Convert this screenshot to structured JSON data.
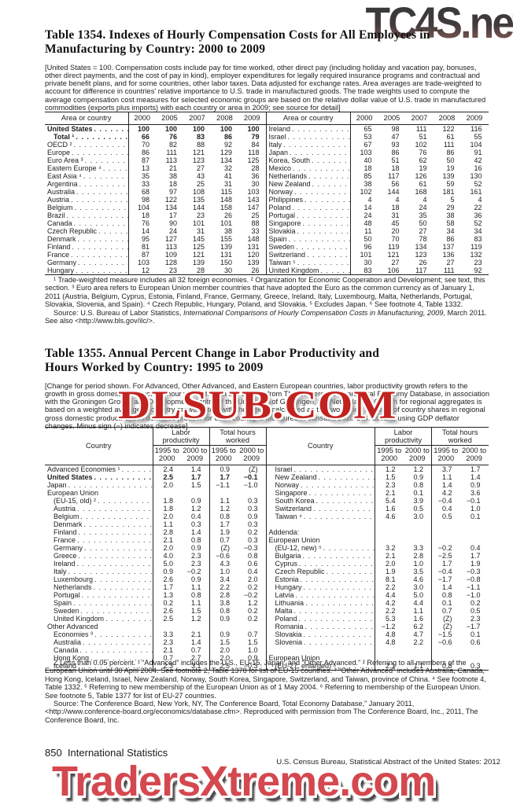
{
  "watermarks": {
    "top": "TC4S.net",
    "middle": "DLSUB.COM",
    "bottom": "TradersXtreme.com",
    "red": "#c2221f",
    "bottom_red": "#d4484f",
    "top_gray": "#2f2f2f"
  },
  "table1354": {
    "title": "Table 1354. Indexes of Hourly Compensation Costs for All Employees in\nManufacturing by Country: 2000 to 2009",
    "note": "[United States = 100. Compensation costs include pay for time worked, other direct pay (including holiday and vacation pay, bonuses, other direct payments, and the cost of pay in kind), employer expenditures for legally required insurance programs and contractual and private benefit plans, and for some countries, other labor taxes. Data adjusted for exchange rates. Area averages are trade-weighted to account for difference in countries' relative importance to U.S. trade in manufactured goods. The trade weights used to compute the average compensation cost measures for selected economic groups are based on the relative dollar value of U.S. trade in manufactured commodities (exports plus imports) with each country or area in 2009; see source for detail]",
    "col_header_country": "Area or country",
    "years": [
      "2000",
      "2005",
      "2007",
      "2008",
      "2009"
    ],
    "left_rows": [
      {
        "label": "United States",
        "bold": true,
        "values": [
          "100",
          "100",
          "100",
          "100",
          "100"
        ]
      },
      {
        "label": "Total ¹",
        "bold": true,
        "indent": 1,
        "values": [
          "66",
          "76",
          "83",
          "86",
          "79"
        ]
      },
      {
        "label": "OECD ²",
        "values": [
          "70",
          "82",
          "88",
          "92",
          "84"
        ]
      },
      {
        "label": "Europe",
        "values": [
          "86",
          "111",
          "121",
          "129",
          "118"
        ]
      },
      {
        "label": "Euro Area ³",
        "values": [
          "87",
          "113",
          "123",
          "134",
          "125"
        ]
      },
      {
        "label": "Eastern Europe ⁴",
        "values": [
          "13",
          "21",
          "27",
          "32",
          "28"
        ]
      },
      {
        "label": "East Asia ⁴",
        "values": [
          "35",
          "38",
          "43",
          "41",
          "36"
        ]
      },
      {
        "label": "Argentina",
        "values": [
          "33",
          "18",
          "25",
          "31",
          "30"
        ]
      },
      {
        "label": "Australia",
        "values": [
          "68",
          "97",
          "108",
          "115",
          "103"
        ]
      },
      {
        "label": "Austria",
        "values": [
          "98",
          "122",
          "135",
          "148",
          "143"
        ]
      },
      {
        "label": "Belgium",
        "values": [
          "104",
          "134",
          "144",
          "158",
          "147"
        ]
      },
      {
        "label": "Brazil",
        "values": [
          "18",
          "17",
          "23",
          "26",
          "25"
        ]
      },
      {
        "label": "Canada",
        "values": [
          "76",
          "90",
          "101",
          "101",
          "88"
        ]
      },
      {
        "label": "Czech Republic",
        "values": [
          "14",
          "24",
          "31",
          "38",
          "33"
        ]
      },
      {
        "label": "Denmark",
        "values": [
          "95",
          "127",
          "145",
          "155",
          "148"
        ]
      },
      {
        "label": "Finland",
        "values": [
          "81",
          "113",
          "125",
          "139",
          "131"
        ]
      },
      {
        "label": "France",
        "values": [
          "87",
          "109",
          "121",
          "131",
          "120"
        ]
      },
      {
        "label": "Germany",
        "values": [
          "103",
          "128",
          "139",
          "150",
          "139"
        ]
      },
      {
        "label": "Hungary",
        "values": [
          "12",
          "23",
          "28",
          "30",
          "26"
        ]
      }
    ],
    "right_rows": [
      {
        "label": "Ireland",
        "values": [
          "65",
          "98",
          "111",
          "122",
          "116"
        ]
      },
      {
        "label": "Israel",
        "values": [
          "53",
          "47",
          "51",
          "61",
          "55"
        ]
      },
      {
        "label": "Italy",
        "values": [
          "67",
          "93",
          "102",
          "111",
          "104"
        ]
      },
      {
        "label": "Japan",
        "values": [
          "103",
          "86",
          "76",
          "86",
          "91"
        ]
      },
      {
        "label": "Korea, South",
        "values": [
          "40",
          "51",
          "62",
          "50",
          "42"
        ]
      },
      {
        "label": "Mexico",
        "values": [
          "18",
          "18",
          "19",
          "19",
          "16"
        ]
      },
      {
        "label": "Netherlands",
        "values": [
          "85",
          "117",
          "126",
          "139",
          "130"
        ]
      },
      {
        "label": "New Zealand",
        "values": [
          "38",
          "56",
          "61",
          "59",
          "52"
        ]
      },
      {
        "label": "Norway",
        "values": [
          "102",
          "144",
          "168",
          "181",
          "161"
        ]
      },
      {
        "label": "Philippines",
        "values": [
          "4",
          "4",
          "4",
          "5",
          "4"
        ]
      },
      {
        "label": "Poland",
        "values": [
          "14",
          "18",
          "24",
          "29",
          "22"
        ]
      },
      {
        "label": "Portugal",
        "values": [
          "24",
          "31",
          "35",
          "38",
          "36"
        ]
      },
      {
        "label": "Singapore",
        "values": [
          "48",
          "45",
          "50",
          "58",
          "52"
        ]
      },
      {
        "label": "Slovakia",
        "values": [
          "11",
          "20",
          "27",
          "34",
          "34"
        ]
      },
      {
        "label": "Spain",
        "values": [
          "50",
          "70",
          "78",
          "86",
          "83"
        ]
      },
      {
        "label": "Sweden",
        "values": [
          "96",
          "119",
          "134",
          "137",
          "119"
        ]
      },
      {
        "label": "Switzerland",
        "values": [
          "101",
          "121",
          "123",
          "136",
          "132"
        ]
      },
      {
        "label": "Taiwan ⁵",
        "values": [
          "30",
          "27",
          "26",
          "27",
          "23"
        ]
      },
      {
        "label": "United Kingdom",
        "values": [
          "83",
          "106",
          "117",
          "111",
          "92"
        ]
      }
    ],
    "footnote": "¹ Trade-weighted measure includes all 32 foreign economies. ² Organization for Economic Cooperation and Development; see text, this section. ³ Euro area refers to European Union member countries that have adopted the Euro as the common currency as of January 1, 2011 (Austria, Belgium, Cyprus, Estonia, Finland, France, Germany, Greece, Ireland, Italy, Luxembourg, Malta, Netherlands, Portugal, Slovakia, Slovenia, and Spain). ⁴ Czech Republic, Hungary, Poland, and Slovakia. ⁵ Excludes Japan. ⁶ See footnote 4, Table 1332.",
    "source_pre": "Source: U.S. Bureau of Labor Statistics, ",
    "source_italic": "International Comparisons of Hourly Compensation Costs in Manufacturing, 2009,",
    "source_post": " March 2011. See also <http://www.bls.gov/ilc/>."
  },
  "table1355": {
    "title": "Table 1355. Annual Percent Change in Labor Productivity and\nHours Worked by Country: 1995 to 2009",
    "note": "[Change for period shown. For Advanced, Other Advanced, and Eastern European countries, labor productivity growth refers to the growth in gross domestic product per hour worked. Data are derived from The Conference Board Total Economy Database, in association with the Groningen Growth and Development Centre of the University of Groningen, the Netherlands. Growth for regional aggregates is based on a weighted average of country growth rates, with the weight calculated as the two-period average of country shares in regional gross domestic product. Gross domestic product for each country is measured in constant 2010 U.S. dollars, using GDP deflator changes. Minus sign (−) indicates decrease]",
    "col_header_country": "Country",
    "group1": "Labor productivity",
    "group2": "Total hours worked",
    "sub": [
      {
        "top": "1995 to",
        "bot": "2000"
      },
      {
        "top": "2000 to",
        "bot": "2009"
      }
    ],
    "left_rows": [
      {
        "label": "Advanced Economies ¹",
        "values": [
          "2.4",
          "1.4",
          "0.9",
          "(Z)"
        ]
      },
      {
        "label": "United States",
        "bold": true,
        "values": [
          "2.5",
          "1.7",
          "1.7",
          "−0.1"
        ]
      },
      {
        "label": "Japan",
        "values": [
          "2.0",
          "1.5",
          "−1.1",
          "−1.0"
        ]
      },
      {
        "label": "European Union",
        "dots": false,
        "values": [
          "",
          "",
          "",
          ""
        ]
      },
      {
        "label": "(EU-15, old) ²",
        "indent": 1,
        "values": [
          "1.8",
          "0.9",
          "1.1",
          "0.3"
        ]
      },
      {
        "label": "Austria",
        "indent": 1,
        "values": [
          "1.8",
          "1.2",
          "1.2",
          "0.3"
        ]
      },
      {
        "label": "Belgium",
        "indent": 1,
        "values": [
          "2.0",
          "0.4",
          "0.8",
          "0.9"
        ]
      },
      {
        "label": "Denmark",
        "indent": 1,
        "values": [
          "1.1",
          "0.3",
          "1.7",
          "0.3"
        ]
      },
      {
        "label": "Finland",
        "indent": 1,
        "values": [
          "2.8",
          "1.4",
          "1.9",
          "0.2"
        ]
      },
      {
        "label": "France",
        "indent": 1,
        "values": [
          "2.1",
          "0.8",
          "0.7",
          "0.3"
        ]
      },
      {
        "label": "Germany",
        "indent": 1,
        "values": [
          "2.0",
          "0.9",
          "(Z)",
          "−0.3"
        ]
      },
      {
        "label": "Greece",
        "indent": 1,
        "values": [
          "4.0",
          "2.3",
          "−0.6",
          "0.8"
        ]
      },
      {
        "label": "Ireland",
        "indent": 1,
        "values": [
          "5.0",
          "2.3",
          "4.3",
          "0.6"
        ]
      },
      {
        "label": "Italy",
        "indent": 1,
        "values": [
          "0.9",
          "−0.2",
          "1.0",
          "0.4"
        ]
      },
      {
        "label": "Luxembourg",
        "indent": 1,
        "values": [
          "2.6",
          "0.9",
          "3.4",
          "2.0"
        ]
      },
      {
        "label": "Netherlands",
        "indent": 1,
        "values": [
          "1.7",
          "1.1",
          "2.2",
          "0.2"
        ]
      },
      {
        "label": "Portugal",
        "indent": 1,
        "values": [
          "1.3",
          "0.8",
          "2.8",
          "−0.2"
        ]
      },
      {
        "label": "Spain",
        "indent": 1,
        "values": [
          "0.2",
          "1.1",
          "3.8",
          "1.2"
        ]
      },
      {
        "label": "Sweden",
        "indent": 1,
        "values": [
          "2.6",
          "1.5",
          "0.8",
          "0.2"
        ]
      },
      {
        "label": "United Kingdom",
        "indent": 1,
        "values": [
          "2.5",
          "1.2",
          "0.9",
          "0.2"
        ]
      },
      {
        "label": "Other Advanced",
        "dots": false,
        "values": [
          "",
          "",
          "",
          ""
        ]
      },
      {
        "label": "Economies ³",
        "indent": 1,
        "values": [
          "3.3",
          "2.1",
          "0.9",
          "0.7"
        ]
      },
      {
        "label": "Australia",
        "indent": 1,
        "values": [
          "2.3",
          "1.4",
          "1.5",
          "1.5"
        ]
      },
      {
        "label": "Canada",
        "indent": 1,
        "values": [
          "2.1",
          "0.7",
          "2.0",
          "1.0"
        ]
      },
      {
        "label": "Hong Kong",
        "indent": 1,
        "values": [
          "0.7",
          "2.7",
          "2.0",
          "0.9"
        ]
      },
      {
        "label": "Iceland",
        "indent": 1,
        "values": [
          "2.3",
          "3.1",
          "2.5",
          "−0.3"
        ]
      }
    ],
    "right_rows": [
      {
        "label": "Israel",
        "indent": 1,
        "values": [
          "1.2",
          "1.2",
          "3.7",
          "1.7"
        ]
      },
      {
        "label": "New Zealand",
        "indent": 1,
        "values": [
          "1.5",
          "0.9",
          "1.1",
          "1.4"
        ]
      },
      {
        "label": "Norway",
        "indent": 1,
        "values": [
          "2.3",
          "0.8",
          "1.4",
          "0.9"
        ]
      },
      {
        "label": "Singapore",
        "indent": 1,
        "values": [
          "2.1",
          "0.1",
          "4.2",
          "3.6"
        ]
      },
      {
        "label": "South Korea",
        "indent": 1,
        "values": [
          "5.4",
          "3.9",
          "−0.4",
          "−0.1"
        ]
      },
      {
        "label": "Switzerland",
        "indent": 1,
        "values": [
          "1.6",
          "0.5",
          "0.4",
          "1.0"
        ]
      },
      {
        "label": "Taiwan ⁴",
        "indent": 1,
        "values": [
          "4.6",
          "3.0",
          "0.5",
          "0.1"
        ]
      },
      {
        "label": "",
        "dots": false,
        "blank": true,
        "values": [
          "",
          "",
          "",
          ""
        ]
      },
      {
        "label": "Addenda:",
        "dots": false,
        "values": [
          "",
          "",
          "",
          ""
        ]
      },
      {
        "label": "European Union",
        "dots": false,
        "values": [
          "",
          "",
          "",
          ""
        ]
      },
      {
        "label": "(EU-12, new) ⁵",
        "indent": 1,
        "values": [
          "3.2",
          "3.3",
          "−0.2",
          "0.4"
        ]
      },
      {
        "label": "Bulgaria",
        "indent": 1,
        "values": [
          "2.1",
          "2.8",
          "−2.5",
          "1.7"
        ]
      },
      {
        "label": "Cyprus",
        "indent": 1,
        "values": [
          "2.0",
          "1.0",
          "1.7",
          "1.9"
        ]
      },
      {
        "label": "Czech Republic",
        "indent": 1,
        "values": [
          "1.9",
          "3.5",
          "−0.4",
          "−0.3"
        ]
      },
      {
        "label": "Estonia",
        "indent": 1,
        "values": [
          "8.1",
          "4.6",
          "−1.7",
          "−0.8"
        ]
      },
      {
        "label": "Hungary",
        "indent": 1,
        "values": [
          "2.2",
          "3.0",
          "1.4",
          "−1.1"
        ]
      },
      {
        "label": "Latvia",
        "indent": 1,
        "values": [
          "4.4",
          "5.0",
          "0.8",
          "−1.0"
        ]
      },
      {
        "label": "Lithuania",
        "indent": 1,
        "values": [
          "4.2",
          "4.4",
          "0.1",
          "0.2"
        ]
      },
      {
        "label": "Malta",
        "indent": 1,
        "values": [
          "2.2",
          "1.1",
          "0.7",
          "0.5"
        ]
      },
      {
        "label": "Poland",
        "indent": 1,
        "values": [
          "5.3",
          "1.6",
          "(Z)",
          "2.3"
        ]
      },
      {
        "label": "Romania",
        "indent": 1,
        "values": [
          "−1.2",
          "6.2",
          "(Z)",
          "−1.7"
        ]
      },
      {
        "label": "Slovakia",
        "indent": 1,
        "values": [
          "4.8",
          "4.7",
          "−1.5",
          "0.1"
        ]
      },
      {
        "label": "Slovenia",
        "indent": 1,
        "values": [
          "4.8",
          "2.2",
          "−0.6",
          "0.6"
        ]
      },
      {
        "label": "",
        "dots": false,
        "blank": true,
        "values": [
          "",
          "",
          "",
          ""
        ]
      },
      {
        "label": "European Union",
        "dots": false,
        "values": [
          "",
          "",
          "",
          ""
        ]
      },
      {
        "label": "(EU-27, enlarged) ⁶",
        "indent": 1,
        "values": [
          "2.1",
          "1.1",
          "0.8",
          "0.3"
        ]
      }
    ],
    "footnote": "Z Less than 0.05 percent. ¹ “Advanced” includes the U.S., EU-15, Japan, and “Other Advanced.” ² Referring to all members of the European Union until 30 April 2004. See footnote 2, Table 1378 for list of EU-15 countries. ³ “Other Advanced” includes Australia, Canada, Hong Kong, Iceland, Israel, New Zealand, Norway, South Korea, Singapore, Switzerland, and Taiwan, province of China. ⁴ See footnote 4, Table 1332. ⁵ Referring to new membership of the European Union as of 1 May 2004. ⁶ Referring to membership of the European Union. See footnote 5, Table 1377 for list of EU-27 countries.",
    "source": "Source: The Conference Board, New York, NY, The Conference Board, Total Economy Database,” January 2011, <http://www.conference-board.org/economics/database.cfm>. Reproduced with permission from The Conference Board, Inc., 2011, The Conference Board, Inc."
  },
  "footer": {
    "page": "850",
    "section": "International Statistics",
    "census": "U.S. Census Bureau, Statistical Abstract of the United States: 2012"
  }
}
